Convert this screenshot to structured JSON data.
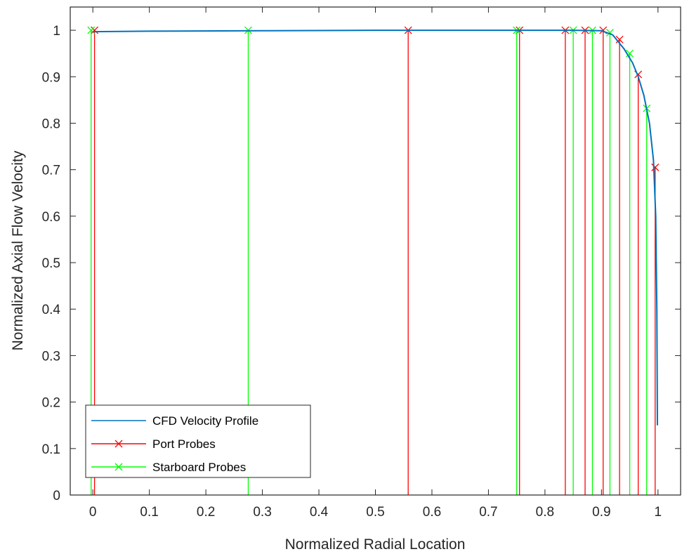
{
  "chart_data": {
    "type": "line",
    "xlabel": "Normalized Radial Location",
    "ylabel": "Normalized Axial Flow Velocity",
    "xlim": [
      -0.04,
      1.04
    ],
    "ylim": [
      0,
      1.05
    ],
    "grid": false,
    "legend_position": "bottom-left",
    "x_ticks": [
      0,
      0.1,
      0.2,
      0.3,
      0.4,
      0.5,
      0.6,
      0.7,
      0.8,
      0.9,
      1
    ],
    "x_tick_labels": [
      "0",
      "0.1",
      "0.2",
      "0.3",
      "0.4",
      "0.5",
      "0.6",
      "0.7",
      "0.8",
      "0.9",
      "1"
    ],
    "y_ticks": [
      0,
      0.1,
      0.2,
      0.3,
      0.4,
      0.5,
      0.6,
      0.7,
      0.8,
      0.9,
      1
    ],
    "y_tick_labels": [
      "0",
      "0.1",
      "0.2",
      "0.3",
      "0.4",
      "0.5",
      "0.6",
      "0.7",
      "0.8",
      "0.9",
      "1"
    ],
    "series": [
      {
        "name": "CFD Velocity Profile",
        "color": "#0072BD",
        "style": "line",
        "x": [
          0,
          0.1,
          0.3,
          0.5,
          0.7,
          0.85,
          0.9,
          0.92,
          0.94,
          0.955,
          0.965,
          0.975,
          0.985,
          0.992,
          0.996,
          0.998,
          0.999
        ],
        "y": [
          0.997,
          0.998,
          0.999,
          1.0,
          1.0,
          1.0,
          0.999,
          0.99,
          0.96,
          0.93,
          0.9,
          0.86,
          0.8,
          0.72,
          0.6,
          0.4,
          0.15
        ]
      },
      {
        "name": "Port Probes",
        "color": "#FF0000",
        "style": "stem-x",
        "x": [
          0.003,
          0.558,
          0.755,
          0.836,
          0.871,
          0.903,
          0.932,
          0.965,
          0.995
        ],
        "y": [
          1.0,
          1.0,
          1.0,
          1.0,
          1.0,
          1.0,
          0.98,
          0.905,
          0.705
        ]
      },
      {
        "name": "Starboard Probes",
        "color": "#00FF00",
        "style": "stem-x",
        "x": [
          -0.003,
          0.275,
          0.75,
          0.85,
          0.884,
          0.915,
          0.95,
          0.98
        ],
        "y": [
          1.0,
          1.0,
          1.0,
          1.0,
          1.0,
          0.995,
          0.95,
          0.832
        ]
      }
    ]
  }
}
